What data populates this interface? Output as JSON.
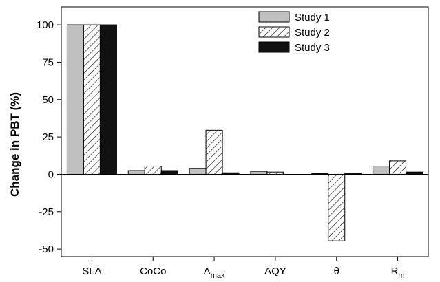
{
  "chart_data": {
    "type": "bar",
    "title": "",
    "xlabel": "",
    "ylabel": "Change in PBT (%)",
    "ylim": [
      -55,
      112
    ],
    "yticks": [
      -50,
      -25,
      0,
      25,
      50,
      75,
      100
    ],
    "grid": false,
    "legend_position": "top-right",
    "categories": [
      {
        "main": "SLA",
        "sub": ""
      },
      {
        "main": "CoCo",
        "sub": ""
      },
      {
        "main": "A",
        "sub": "max"
      },
      {
        "main": "AQY",
        "sub": ""
      },
      {
        "main": "θ",
        "sub": ""
      },
      {
        "main": "R",
        "sub": "m"
      }
    ],
    "series": [
      {
        "name": "Study 1",
        "style": "solid",
        "color": "#c0c0c0",
        "values": [
          100,
          2.5,
          4,
          2,
          0.5,
          5.5
        ]
      },
      {
        "name": "Study 2",
        "style": "hatched",
        "color": "#ffffff",
        "values": [
          100,
          5.5,
          29.5,
          1.5,
          -44.5,
          9
        ]
      },
      {
        "name": "Study 3",
        "style": "solid",
        "color": "#111111",
        "values": [
          100,
          2.5,
          1,
          0,
          0.8,
          1.5
        ]
      }
    ]
  }
}
